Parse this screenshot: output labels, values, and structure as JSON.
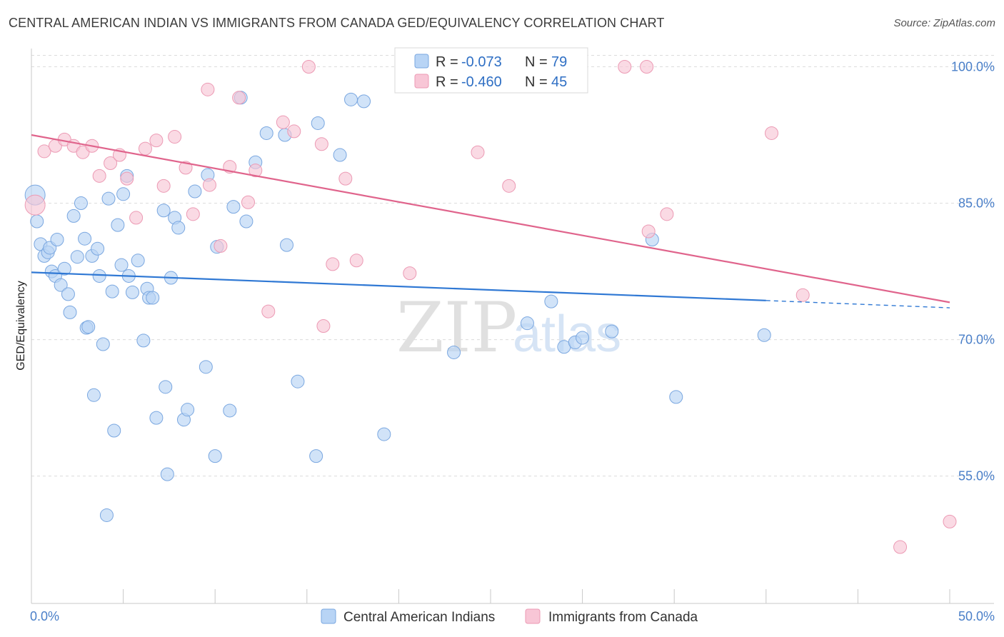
{
  "title": "CENTRAL AMERICAN INDIAN VS IMMIGRANTS FROM CANADA GED/EQUIVALENCY CORRELATION CHART",
  "source": "Source: ZipAtlas.com",
  "watermark": {
    "zip": "ZIP",
    "atlas": "atlas"
  },
  "colors": {
    "blue_fill": "#b8d4f5",
    "blue_stroke": "#7aa7e0",
    "blue_line": "#2f78d4",
    "pink_fill": "#f8c6d6",
    "pink_stroke": "#ec9ab4",
    "pink_line": "#e0648c",
    "value_text": "#2f6fc4",
    "label_text": "#333333",
    "grid": "#dcdcdc"
  },
  "legend": {
    "rows": [
      {
        "r_label": "R = ",
        "r_value": "-0.073",
        "n_label": "N = ",
        "n_value": "79",
        "series": "blue"
      },
      {
        "r_label": "R = ",
        "r_value": "-0.460",
        "n_label": "N = ",
        "n_value": "45",
        "series": "pink"
      }
    ]
  },
  "chart_data": {
    "type": "scatter",
    "title": "CENTRAL AMERICAN INDIAN VS IMMIGRANTS FROM CANADA GED/EQUIVALENCY CORRELATION CHART",
    "xlabel": "",
    "ylabel": "GED/Equivalency",
    "xlim": [
      0,
      50
    ],
    "ylim": [
      41,
      102
    ],
    "x_tick_labels": [
      "0.0%",
      "50.0%"
    ],
    "y_ticks": [
      55,
      70,
      85,
      100
    ],
    "y_tick_labels": [
      "55.0%",
      "70.0%",
      "85.0%",
      "100.0%"
    ],
    "grid": true,
    "legend_position": "top-center",
    "series": [
      {
        "name": "Central American Indians",
        "color": "#b8d4f5",
        "r": -0.073,
        "n": 79,
        "trend": {
          "x": [
            0,
            40
          ],
          "y": [
            77.4,
            74.3
          ],
          "dashed_to_x": 50,
          "dashed_to_y": 73.5
        },
        "points": [
          [
            0.2,
            85.9
          ],
          [
            0.3,
            83.0
          ],
          [
            0.5,
            80.5
          ],
          [
            0.7,
            79.2
          ],
          [
            0.9,
            79.6
          ],
          [
            1.0,
            80.1
          ],
          [
            1.1,
            77.5
          ],
          [
            1.3,
            77.0
          ],
          [
            1.4,
            81.0
          ],
          [
            1.6,
            76.0
          ],
          [
            1.8,
            77.8
          ],
          [
            2.0,
            75.0
          ],
          [
            2.1,
            73.0
          ],
          [
            2.3,
            83.6
          ],
          [
            2.5,
            79.1
          ],
          [
            2.7,
            85.0
          ],
          [
            2.9,
            81.1
          ],
          [
            3.0,
            71.3
          ],
          [
            3.1,
            71.4
          ],
          [
            3.3,
            79.2
          ],
          [
            3.4,
            63.9
          ],
          [
            3.6,
            80.0
          ],
          [
            3.7,
            77.0
          ],
          [
            3.9,
            69.5
          ],
          [
            4.1,
            50.7
          ],
          [
            4.2,
            85.5
          ],
          [
            4.4,
            75.3
          ],
          [
            4.5,
            60.0
          ],
          [
            4.7,
            82.6
          ],
          [
            4.9,
            78.2
          ],
          [
            5.0,
            86.0
          ],
          [
            5.2,
            88.0
          ],
          [
            5.3,
            77.0
          ],
          [
            5.5,
            75.2
          ],
          [
            5.8,
            78.7
          ],
          [
            6.1,
            69.9
          ],
          [
            6.3,
            75.6
          ],
          [
            6.4,
            74.6
          ],
          [
            6.6,
            74.6
          ],
          [
            6.8,
            61.4
          ],
          [
            7.2,
            84.2
          ],
          [
            7.3,
            64.8
          ],
          [
            7.4,
            55.2
          ],
          [
            7.6,
            76.8
          ],
          [
            7.8,
            83.4
          ],
          [
            8.0,
            82.3
          ],
          [
            8.3,
            61.2
          ],
          [
            8.5,
            62.3
          ],
          [
            8.9,
            86.3
          ],
          [
            9.5,
            67.0
          ],
          [
            9.6,
            88.1
          ],
          [
            10.0,
            57.2
          ],
          [
            10.1,
            80.2
          ],
          [
            10.8,
            62.2
          ],
          [
            11.0,
            84.6
          ],
          [
            11.4,
            96.6
          ],
          [
            11.7,
            83.0
          ],
          [
            12.2,
            89.5
          ],
          [
            12.8,
            92.7
          ],
          [
            13.8,
            92.5
          ],
          [
            13.9,
            80.4
          ],
          [
            14.5,
            65.4
          ],
          [
            15.6,
            93.8
          ],
          [
            15.5,
            57.2
          ],
          [
            16.8,
            90.3
          ],
          [
            17.4,
            96.4
          ],
          [
            18.1,
            96.2
          ],
          [
            19.2,
            59.6
          ],
          [
            22.6,
            100.0
          ],
          [
            23.0,
            68.6
          ],
          [
            27.0,
            71.8
          ],
          [
            28.3,
            74.2
          ],
          [
            29.0,
            69.2
          ],
          [
            29.6,
            69.7
          ],
          [
            30.0,
            70.2
          ],
          [
            31.6,
            70.9
          ],
          [
            33.8,
            81.0
          ],
          [
            35.1,
            63.7
          ],
          [
            39.9,
            70.5
          ]
        ]
      },
      {
        "name": "Immigrants from Canada",
        "color": "#f8c6d6",
        "r": -0.46,
        "n": 45,
        "trend": {
          "x": [
            0,
            50
          ],
          "y": [
            92.5,
            74.1
          ]
        },
        "points": [
          [
            0.2,
            84.8
          ],
          [
            0.7,
            90.7
          ],
          [
            1.3,
            91.3
          ],
          [
            1.8,
            92.0
          ],
          [
            2.3,
            91.3
          ],
          [
            2.8,
            90.6
          ],
          [
            3.3,
            91.3
          ],
          [
            3.7,
            88.0
          ],
          [
            4.3,
            89.4
          ],
          [
            4.8,
            90.3
          ],
          [
            5.2,
            87.7
          ],
          [
            5.7,
            83.4
          ],
          [
            6.2,
            91.0
          ],
          [
            6.8,
            91.9
          ],
          [
            7.2,
            86.9
          ],
          [
            7.8,
            92.3
          ],
          [
            8.4,
            88.9
          ],
          [
            8.8,
            83.8
          ],
          [
            9.6,
            97.5
          ],
          [
            9.7,
            87.0
          ],
          [
            10.3,
            80.3
          ],
          [
            10.8,
            89.0
          ],
          [
            11.3,
            96.6
          ],
          [
            11.8,
            85.1
          ],
          [
            12.2,
            88.6
          ],
          [
            12.9,
            73.1
          ],
          [
            13.7,
            93.9
          ],
          [
            14.3,
            92.9
          ],
          [
            15.1,
            100.0
          ],
          [
            15.8,
            91.5
          ],
          [
            16.4,
            78.3
          ],
          [
            17.1,
            87.7
          ],
          [
            17.7,
            78.7
          ],
          [
            20.6,
            77.3
          ],
          [
            24.3,
            90.6
          ],
          [
            26.0,
            86.9
          ],
          [
            32.3,
            100.0
          ],
          [
            33.5,
            100.0
          ],
          [
            33.6,
            81.9
          ],
          [
            34.6,
            83.8
          ],
          [
            40.3,
            92.7
          ],
          [
            42.0,
            74.9
          ],
          [
            47.3,
            47.2
          ],
          [
            50.0,
            50.0
          ],
          [
            15.9,
            71.5
          ]
        ]
      }
    ]
  },
  "bottom_legend": [
    {
      "label": "Central American Indians",
      "series": "blue"
    },
    {
      "label": "Immigrants from Canada",
      "series": "pink"
    }
  ]
}
